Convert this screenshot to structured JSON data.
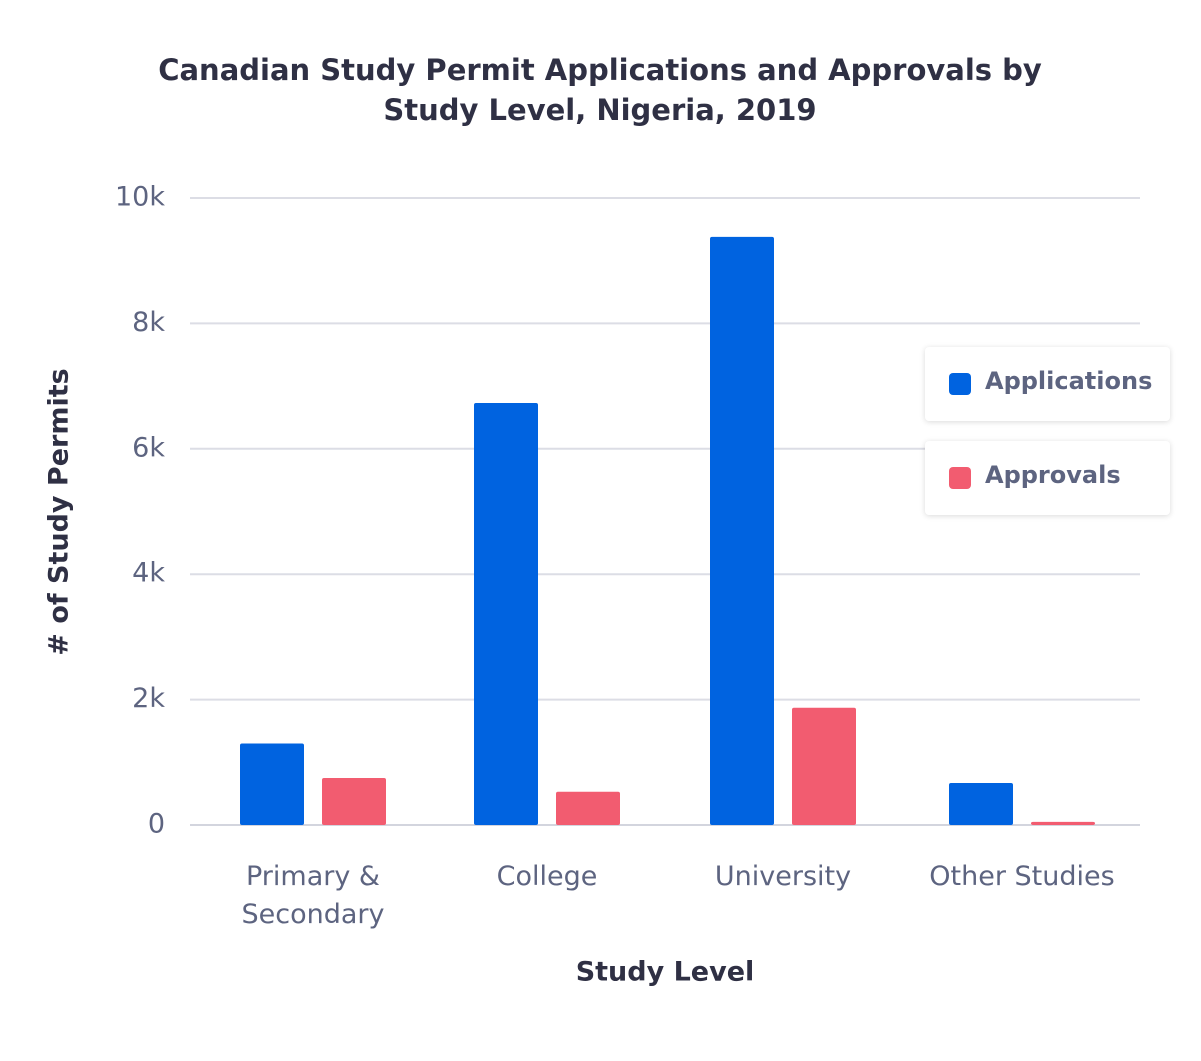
{
  "chart_data": {
    "type": "bar",
    "title": "Canadian Study Permit Applications and Approvals by Study Level, Nigeria, 2019",
    "x_label": "Study Level",
    "y_label": "# of Study Permits",
    "categories": [
      "Primary & Secondary",
      "College",
      "University",
      "Other Studies"
    ],
    "series": [
      {
        "name": "Applications",
        "color": "#0063e0",
        "values": [
          1300,
          6730,
          9380,
          670
        ]
      },
      {
        "name": "Approvals",
        "color": "#f25c70",
        "values": [
          750,
          530,
          1870,
          50
        ]
      }
    ],
    "ylim": [
      0,
      10000
    ],
    "yticks": [
      0,
      {
        "value": 2000,
        "label": "2k"
      },
      {
        "value": 4000,
        "label": "4k"
      },
      {
        "value": 6000,
        "label": "6k"
      },
      {
        "value": 8000,
        "label": "8k"
      },
      {
        "value": 10000,
        "label": "10k"
      }
    ],
    "grid": true
  }
}
